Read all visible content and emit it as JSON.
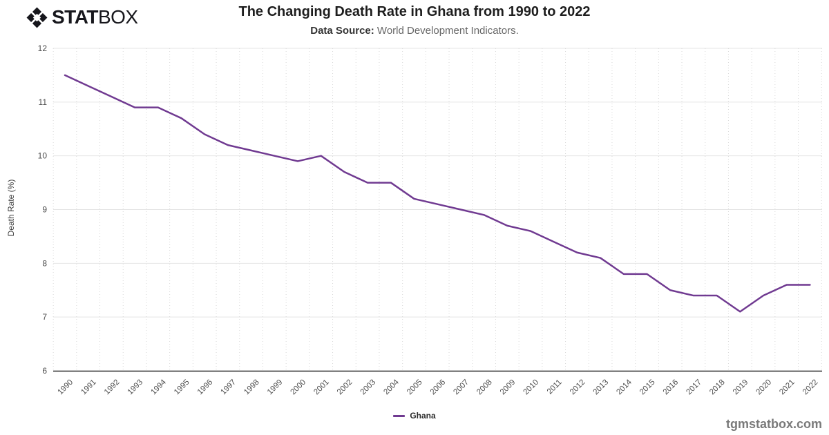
{
  "header": {
    "logo_stat": "STAT",
    "logo_box": "BOX",
    "title": "The Changing Death Rate in Ghana from 1990 to 2022",
    "subtitle_label": "Data Source:",
    "subtitle_text": " World Development Indicators."
  },
  "footer": {
    "watermark": "tgmstatbox.com"
  },
  "chart_data": {
    "type": "line",
    "title": "The Changing Death Rate in Ghana from 1990 to 2022",
    "xlabel": "",
    "ylabel": "Death Rate (%)",
    "ylim": [
      6,
      12
    ],
    "yticks": [
      6,
      7,
      8,
      9,
      10,
      11,
      12
    ],
    "grid": true,
    "legend_position": "bottom-center",
    "x": [
      1990,
      1991,
      1992,
      1993,
      1994,
      1995,
      1996,
      1997,
      1998,
      1999,
      2000,
      2001,
      2002,
      2003,
      2004,
      2005,
      2006,
      2007,
      2008,
      2009,
      2010,
      2011,
      2012,
      2013,
      2014,
      2015,
      2016,
      2017,
      2018,
      2019,
      2020,
      2021,
      2022
    ],
    "series": [
      {
        "name": "Ghana",
        "color": "#703a91",
        "values": [
          11.5,
          11.3,
          11.1,
          10.9,
          10.9,
          10.7,
          10.4,
          10.2,
          10.1,
          10.0,
          9.9,
          10.0,
          9.7,
          9.5,
          9.5,
          9.2,
          9.1,
          9.0,
          8.9,
          8.7,
          8.6,
          8.4,
          8.2,
          8.1,
          7.8,
          7.8,
          7.5,
          7.4,
          7.4,
          7.1,
          7.4,
          7.6,
          7.6
        ]
      }
    ],
    "colors": {
      "line": "#703a91",
      "grid_major": "#e4e4e4",
      "grid_minor_dotted": "#d7d7d7",
      "axis": "#2e2e2e",
      "tick_label": "#4d4d4d"
    }
  }
}
